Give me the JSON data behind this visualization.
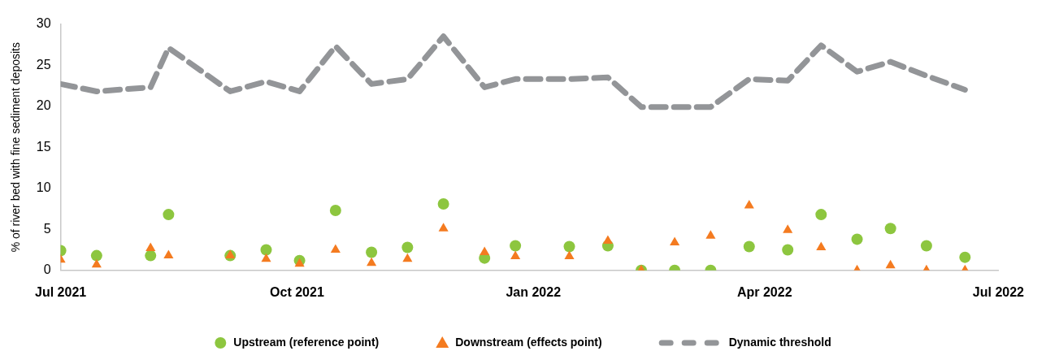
{
  "chart_data": {
    "type": "scatter",
    "ylabel": "% of river bed with fine sediment deposits",
    "x": [
      "2021-07-01",
      "2021-07-15",
      "2021-08-05",
      "2021-08-12",
      "2021-09-05",
      "2021-09-19",
      "2021-10-02",
      "2021-10-16",
      "2021-10-30",
      "2021-11-13",
      "2021-11-27",
      "2021-12-13",
      "2021-12-25",
      "2022-01-15",
      "2022-01-30",
      "2022-02-12",
      "2022-02-25",
      "2022-03-11",
      "2022-03-26",
      "2022-04-10",
      "2022-04-23",
      "2022-05-07",
      "2022-05-20",
      "2022-06-03",
      "2022-06-18"
    ],
    "series": [
      {
        "name": "Upstream (reference point)",
        "type": "scatter",
        "marker": "circle",
        "color": "#8dc63f",
        "values": [
          2.4,
          1.8,
          1.8,
          6.8,
          1.8,
          2.5,
          1.2,
          7.3,
          2.2,
          2.8,
          8.1,
          1.5,
          3.0,
          2.9,
          3.0,
          0,
          0,
          0,
          2.9,
          2.5,
          6.8,
          3.8,
          5.1,
          3.0,
          1.6
        ]
      },
      {
        "name": "Downstream (effects point)",
        "type": "scatter",
        "marker": "triangle",
        "color": "#f47b20",
        "values": [
          1.3,
          0.7,
          2.7,
          1.8,
          1.8,
          1.4,
          0.8,
          2.5,
          0.9,
          1.4,
          5.1,
          2.2,
          1.7,
          1.7,
          3.6,
          0,
          3.4,
          4.2,
          7.9,
          4.9,
          2.8,
          0,
          0.6,
          0,
          0
        ]
      },
      {
        "name": "Dynamic threshold",
        "type": "line",
        "marker": "none",
        "line_style": "dashed",
        "color": "#939598",
        "values": [
          22.7,
          21.8,
          22.3,
          27.1,
          21.8,
          23.0,
          21.8,
          27.3,
          22.7,
          23.3,
          28.5,
          22.3,
          23.3,
          23.3,
          23.5,
          19.9,
          19.9,
          19.9,
          23.3,
          23.1,
          27.4,
          24.2,
          25.4,
          23.7,
          22.0
        ]
      }
    ],
    "xlim": [
      "2021-07-01",
      "2022-07-01"
    ],
    "xticks": [
      {
        "value": "2021-07-01",
        "label": "Jul 2021"
      },
      {
        "value": "2021-10-01",
        "label": "Oct 2021"
      },
      {
        "value": "2022-01-01",
        "label": "Jan 2022"
      },
      {
        "value": "2022-04-01",
        "label": "Apr 2022"
      },
      {
        "value": "2022-07-01",
        "label": "Jul 2022"
      }
    ],
    "ylim": [
      0,
      30
    ],
    "yticks": [
      0,
      5,
      10,
      15,
      20,
      25,
      30
    ],
    "grid": false,
    "legend": "bottom"
  }
}
